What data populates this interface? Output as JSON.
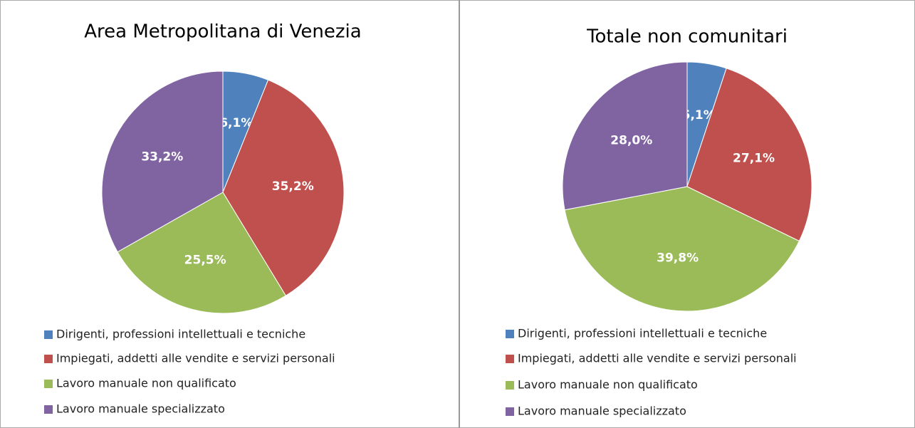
{
  "chart_data": [
    {
      "type": "pie",
      "title": "Area Metropolitana di Venezia",
      "categories": [
        "Dirigenti, professioni intellettuali e tecniche",
        "Impiegati, addetti alle vendite e servizi personali",
        "Lavoro manuale non qualificato",
        "Lavoro manuale specializzato"
      ],
      "values": [
        6.1,
        35.2,
        25.5,
        33.2
      ],
      "value_labels": [
        "6,1%",
        "35,2%",
        "25,5%",
        "33,2%"
      ],
      "colors": [
        "#4f81bd",
        "#c0504d",
        "#9bbb59",
        "#8064a2"
      ]
    },
    {
      "type": "pie",
      "title": "Totale non comunitari",
      "categories": [
        "Dirigenti, professioni intellettuali e tecniche",
        "Impiegati, addetti alle vendite e servizi personali",
        "Lavoro manuale non qualificato",
        "Lavoro manuale specializzato"
      ],
      "values": [
        5.1,
        27.1,
        39.8,
        28.0
      ],
      "value_labels": [
        "5,1%",
        "27,1%",
        "39,8%",
        "28,0%"
      ],
      "colors": [
        "#4f81bd",
        "#c0504d",
        "#9bbb59",
        "#8064a2"
      ]
    }
  ]
}
